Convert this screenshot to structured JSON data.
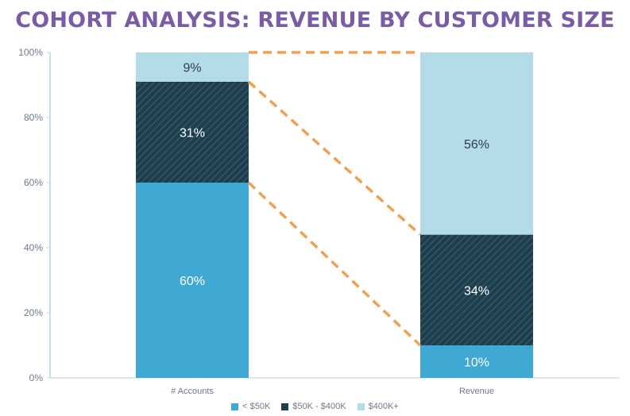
{
  "chart_data": {
    "type": "bar",
    "stacked": true,
    "title": "COHORT ANALYSIS: REVENUE BY CUSTOMER SIZE",
    "categories": [
      "# Accounts",
      "Revenue"
    ],
    "series": [
      {
        "name": "< $50K",
        "values": [
          60,
          10
        ],
        "color": "#3fa9d4",
        "hatched": false
      },
      {
        "name": "$50K - $400K",
        "values": [
          31,
          34
        ],
        "color": "#1f3e4d",
        "hatched": true
      },
      {
        "name": "$400K+",
        "values": [
          9,
          56
        ],
        "color": "#b3dbe8",
        "hatched": false
      }
    ],
    "data_labels": [
      [
        "60%",
        "31%",
        "9%"
      ],
      [
        "10%",
        "34%",
        "56%"
      ]
    ],
    "yticks": [
      "0%",
      "20%",
      "40%",
      "60%",
      "80%",
      "100%"
    ],
    "ylim": [
      0,
      100
    ],
    "grid": false,
    "legend": "bottom-center",
    "connectors": {
      "style": "dashed",
      "color": "#f0a050"
    }
  }
}
